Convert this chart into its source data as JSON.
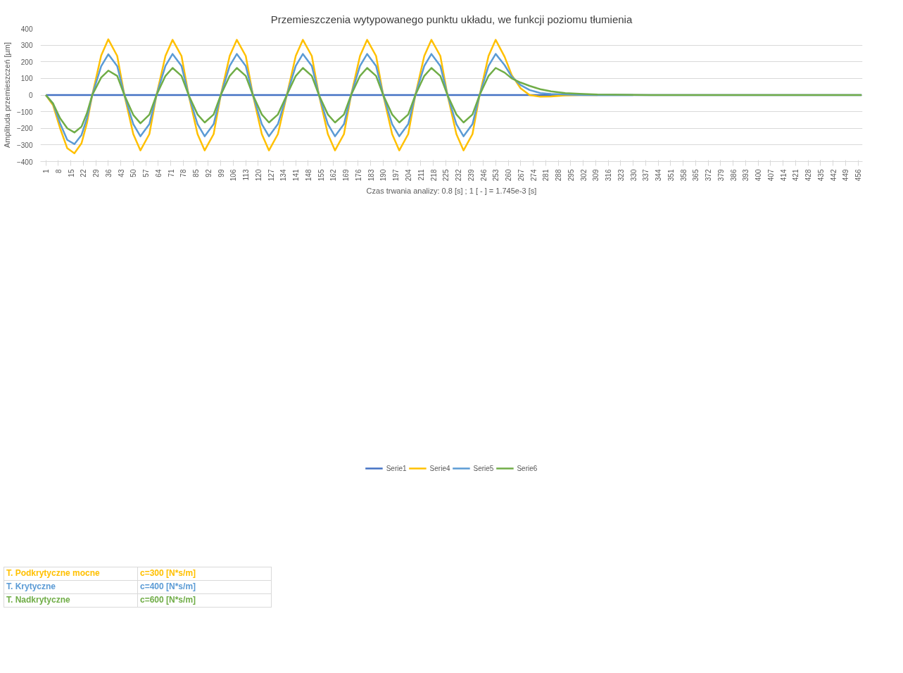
{
  "chart_data": {
    "type": "line",
    "title": "Przemieszczenia wytypowanego punktu układu, we funkcji poziomu tłumienia",
    "xlabel": "Czas trwania analizy: 0.8 [s] ; 1 [ - ] = 1.745e-3 [s]",
    "ylabel": "Amplituda przemieszczeń [µm]",
    "xlim": [
      -2,
      458.5
    ],
    "ylim": [
      -400,
      400
    ],
    "xticks": [
      1,
      8,
      15,
      22,
      29,
      36,
      43,
      50,
      57,
      64,
      71,
      78,
      85,
      92,
      99,
      106,
      113,
      120,
      127,
      134,
      141,
      148,
      155,
      162,
      169,
      176,
      183,
      190,
      197,
      204,
      211,
      218,
      225,
      232,
      239,
      246,
      253,
      260,
      267,
      274,
      281,
      288,
      295,
      302,
      309,
      316,
      323,
      330,
      337,
      344,
      351,
      358,
      365,
      372,
      379,
      386,
      393,
      400,
      407,
      414,
      421,
      428,
      435,
      442,
      449,
      456
    ],
    "yticks": [
      -400,
      -300,
      -200,
      -100,
      0,
      100,
      200,
      300,
      400
    ],
    "grid": "y",
    "legend": "bottom",
    "marker": "none",
    "line_style": "solid",
    "x": [
      1,
      5,
      9,
      13,
      17,
      21,
      24,
      27,
      32,
      36,
      41,
      45,
      50,
      54,
      59,
      63,
      68,
      72,
      77,
      81,
      86,
      90,
      95,
      99,
      104,
      108,
      113,
      117,
      122,
      126,
      131,
      136,
      141,
      145,
      150,
      154,
      159,
      163,
      168,
      172,
      177,
      181,
      186,
      190,
      195,
      199,
      204,
      208,
      213,
      217,
      222,
      226,
      231,
      235,
      240,
      244,
      249,
      253,
      258,
      262,
      267,
      272,
      278,
      284,
      292,
      300,
      310,
      330,
      340,
      458
    ],
    "series": [
      {
        "name": "Serie1",
        "color": "#4472c4",
        "x": [
          1,
          458
        ],
        "values": [
          0,
          0
        ]
      },
      {
        "name": "Serie4",
        "color": "#ffc000",
        "x": [
          1,
          5,
          9,
          13,
          17,
          21,
          24,
          27,
          32,
          36,
          41,
          45,
          50,
          54,
          59,
          63,
          68,
          72,
          77,
          81,
          86,
          90,
          95,
          99,
          104,
          108,
          113,
          117,
          122,
          126,
          131,
          136,
          141,
          145,
          150,
          154,
          159,
          163,
          168,
          172,
          177,
          181,
          186,
          190,
          195,
          199,
          204,
          208,
          213,
          217,
          222,
          226,
          231,
          235,
          240,
          244,
          249,
          253,
          258,
          262,
          267,
          272,
          278,
          284,
          292,
          300,
          310
        ],
        "values": [
          0,
          -60,
          -200,
          -320,
          -350,
          -290,
          -170,
          0,
          237,
          335,
          235,
          0,
          -235,
          -333,
          -235,
          0,
          235,
          332,
          235,
          0,
          -235,
          -333,
          -235,
          0,
          235,
          332,
          235,
          0,
          -235,
          -333,
          -235,
          0,
          235,
          332,
          235,
          0,
          -235,
          -333,
          -235,
          0,
          235,
          332,
          235,
          0,
          -235,
          -333,
          -235,
          0,
          235,
          332,
          235,
          0,
          -235,
          -333,
          -235,
          0,
          235,
          332,
          230,
          120,
          40,
          0,
          -10,
          -8,
          -2,
          0,
          0
        ]
      },
      {
        "name": "Serie5",
        "color": "#5b9bd5",
        "x": [
          1,
          5,
          9,
          13,
          17,
          21,
          24,
          27,
          32,
          36,
          41,
          45,
          50,
          54,
          59,
          63,
          68,
          72,
          77,
          81,
          86,
          90,
          95,
          99,
          104,
          108,
          113,
          117,
          122,
          126,
          131,
          136,
          141,
          145,
          150,
          154,
          159,
          163,
          168,
          172,
          177,
          181,
          186,
          190,
          195,
          199,
          204,
          208,
          213,
          217,
          222,
          226,
          231,
          235,
          240,
          244,
          249,
          253,
          258,
          262,
          267,
          272,
          278,
          284,
          292,
          300,
          310,
          330
        ],
        "values": [
          0,
          -50,
          -170,
          -270,
          -295,
          -240,
          -140,
          0,
          173,
          245,
          174,
          0,
          -175,
          -248,
          -175,
          0,
          175,
          247,
          175,
          0,
          -175,
          -248,
          -175,
          0,
          175,
          247,
          175,
          0,
          -175,
          -248,
          -175,
          0,
          175,
          247,
          175,
          0,
          -175,
          -248,
          -175,
          0,
          175,
          247,
          175,
          0,
          -175,
          -248,
          -175,
          0,
          175,
          247,
          175,
          0,
          -175,
          -248,
          -175,
          0,
          175,
          247,
          180,
          110,
          60,
          30,
          12,
          6,
          3,
          1,
          0,
          0
        ]
      },
      {
        "name": "Serie6",
        "color": "#70ad47",
        "values": [
          0,
          -50,
          -140,
          -200,
          -225,
          -190,
          -110,
          0,
          105,
          147,
          115,
          0,
          -120,
          -170,
          -118,
          0,
          115,
          163,
          115,
          0,
          -117,
          -165,
          -117,
          0,
          115,
          163,
          115,
          0,
          -117,
          -165,
          -117,
          0,
          115,
          163,
          115,
          0,
          -117,
          -165,
          -117,
          0,
          115,
          163,
          115,
          0,
          -117,
          -165,
          -117,
          0,
          115,
          163,
          115,
          0,
          -117,
          -165,
          -117,
          0,
          115,
          163,
          135,
          100,
          75,
          55,
          35,
          22,
          12,
          7,
          3,
          1,
          0,
          0
        ]
      }
    ],
    "annotations": [
      "T. Podkrytyczne mocne",
      "c=300 [N*s/m]",
      "T. Krytyczne",
      "c=400 [N*s/m]",
      "T. Nadkrytyczne",
      "c=600 [N*s/m]"
    ]
  }
}
